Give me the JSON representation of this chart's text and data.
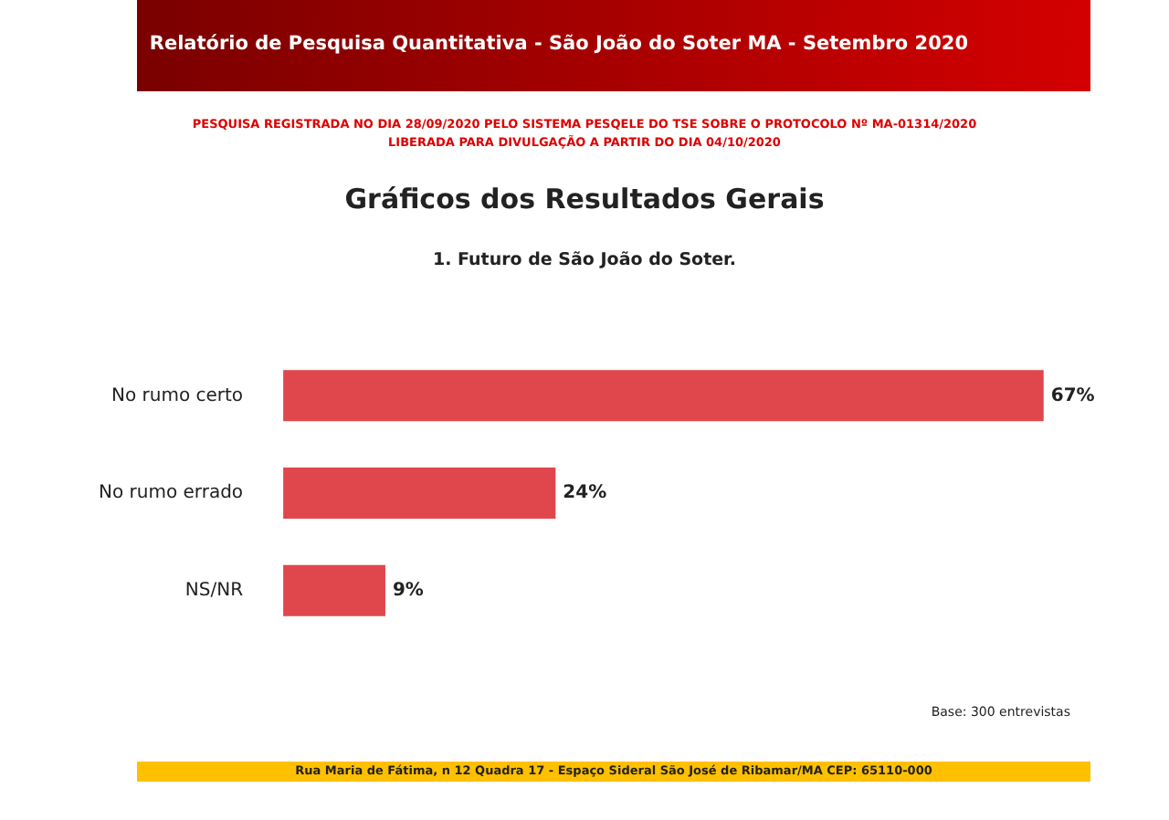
{
  "chart_data": {
    "type": "bar",
    "orientation": "horizontal",
    "tick_labels": "y",
    "title": "1. Futuro de São João do Soter.",
    "categories": [
      "No rumo certo",
      "No rumo errado",
      "NS/NR"
    ],
    "values": [
      67,
      24,
      9
    ],
    "value_labels": [
      "67%",
      "24%",
      "9%"
    ],
    "color": "#e0474c",
    "legend": false,
    "annotations": [
      "Relatório de Pesquisa Quantitativa - São João do Soter MA - Setembro 2020",
      "PESQUISA REGISTRADA NO DIA 28/09/2020 PELO SISTEMA PESQELE DO TSE SOBRE O PROTOCOLO Nº MA-01314/2020",
      "LIBERADA PARA DIVULGAÇÃO A PARTIR DO DIA 04/10/2020",
      "Gráficos dos Resultados Gerais",
      "Base: 300 entrevistas",
      "Rua Maria de Fátima, n 12 Quadra 17 - Espaço Sideral São José de Ribamar/MA CEP: 65110-000"
    ]
  }
}
